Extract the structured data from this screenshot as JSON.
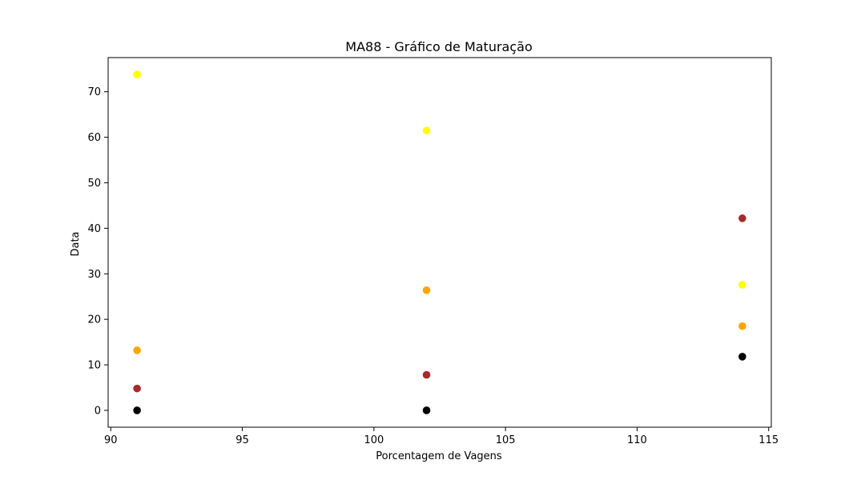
{
  "chart_data": {
    "type": "scatter",
    "title": "MA88 - Gráfico de Maturação",
    "xlabel": "Porcentagem de Vagens",
    "ylabel": "Data",
    "xlim": [
      89.9,
      115.1
    ],
    "ylim": [
      -3.7,
      77.5
    ],
    "xticks": [
      90,
      95,
      100,
      105,
      110,
      115
    ],
    "yticks": [
      0,
      10,
      20,
      30,
      40,
      50,
      60,
      70
    ],
    "grid": false,
    "colors": {
      "black": "#000000",
      "brown": "#a52a2a",
      "orange": "#ffa500",
      "yellow": "#ffff00"
    },
    "series": [
      {
        "color": "#000000",
        "points": [
          {
            "x": 91,
            "y": 0
          },
          {
            "x": 102,
            "y": 0
          },
          {
            "x": 114,
            "y": 11.8
          }
        ]
      },
      {
        "color": "#a52a2a",
        "points": [
          {
            "x": 91,
            "y": 4.8
          },
          {
            "x": 102,
            "y": 7.8
          },
          {
            "x": 114,
            "y": 42.2
          }
        ]
      },
      {
        "color": "#ffa500",
        "points": [
          {
            "x": 91,
            "y": 13.2
          },
          {
            "x": 102,
            "y": 26.4
          },
          {
            "x": 114,
            "y": 18.5
          }
        ]
      },
      {
        "color": "#ffff00",
        "points": [
          {
            "x": 91,
            "y": 73.8
          },
          {
            "x": 102,
            "y": 61.5
          },
          {
            "x": 114,
            "y": 27.6
          }
        ]
      }
    ]
  }
}
